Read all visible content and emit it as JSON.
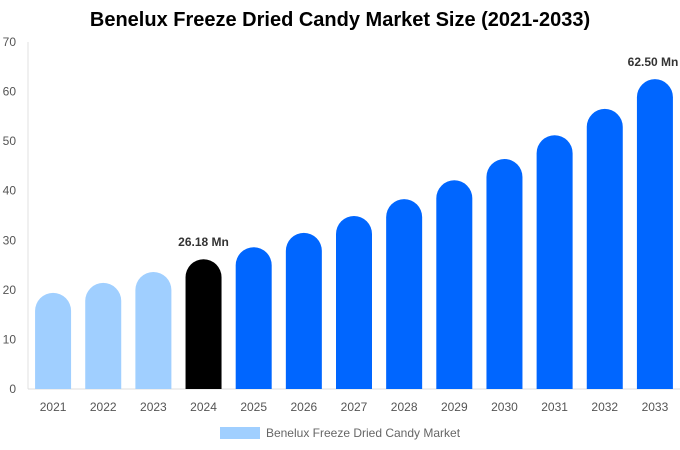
{
  "chart_data": {
    "type": "bar",
    "title": "Benelux Freeze Dried Candy Market Size (2021-2033)",
    "categories": [
      "2021",
      "2022",
      "2023",
      "2024",
      "2025",
      "2026",
      "2027",
      "2028",
      "2029",
      "2030",
      "2031",
      "2032",
      "2033"
    ],
    "series": [
      {
        "name": "Benelux Freeze Dried Candy Market",
        "values": [
          19.4,
          21.4,
          23.6,
          26.18,
          28.6,
          31.5,
          34.9,
          38.3,
          42.1,
          46.4,
          51.2,
          56.5,
          62.5
        ]
      }
    ],
    "bar_colors": [
      "#a0cfff",
      "#a0cfff",
      "#a0cfff",
      "#000000",
      "#0066ff",
      "#0066ff",
      "#0066ff",
      "#0066ff",
      "#0066ff",
      "#0066ff",
      "#0066ff",
      "#0066ff",
      "#0066ff"
    ],
    "data_labels": {
      "3": "26.18 Mn",
      "12": "62.50 Mn"
    },
    "yticks": [
      0,
      10,
      20,
      30,
      40,
      50,
      60,
      70
    ],
    "ylim": [
      0,
      70
    ],
    "xlabel": "",
    "ylabel": "",
    "grid": false,
    "legend_placement": "bottom"
  }
}
